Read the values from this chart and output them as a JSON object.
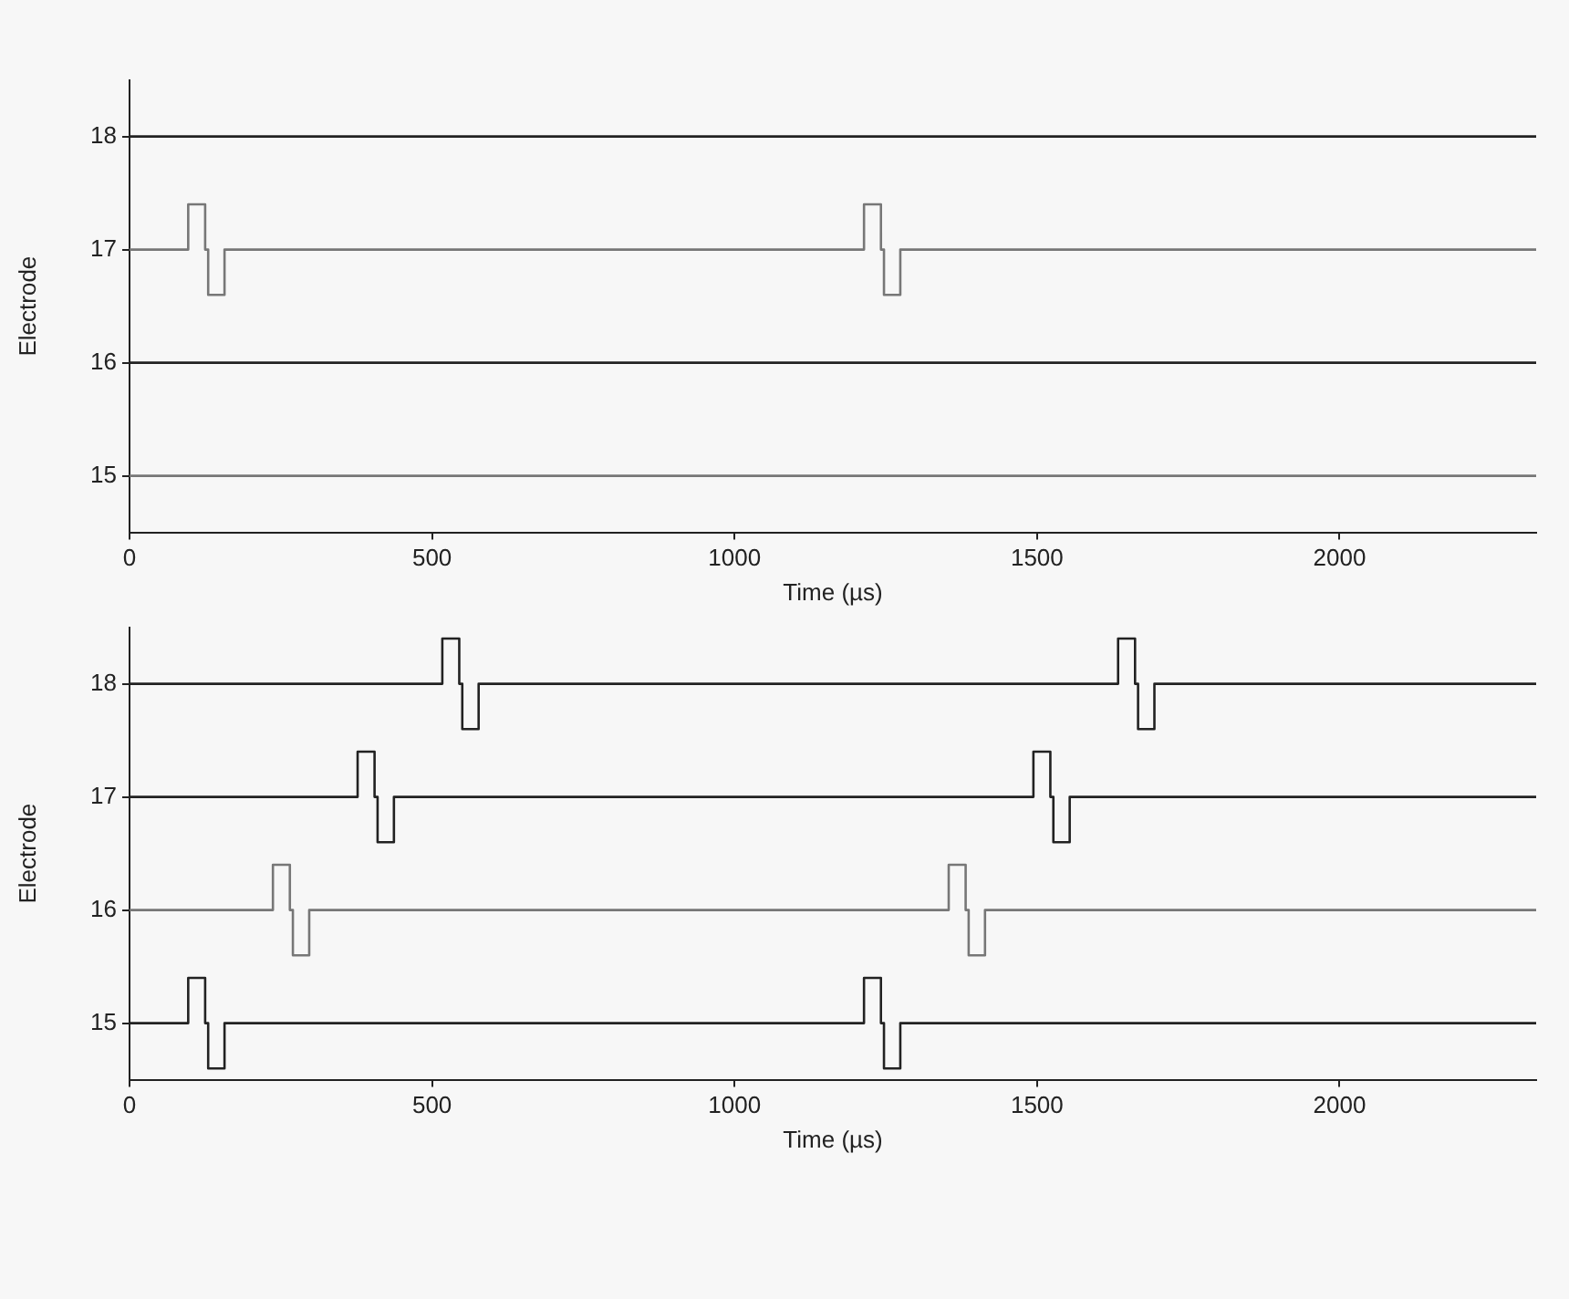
{
  "chart_data": [
    {
      "type": "line",
      "xlabel": "Time (µs)",
      "ylabel": "Electrode",
      "xlim": [
        0,
        2325
      ],
      "xticks": [
        0,
        500,
        1000,
        1500,
        2000
      ],
      "ylim": [
        14.5,
        18.5
      ],
      "yticks": [
        15,
        16,
        17,
        18
      ],
      "grid": false,
      "legend": false,
      "marker": "none",
      "series": [
        {
          "color": "#222222",
          "x": [
            0,
            2325
          ],
          "values": [
            18,
            18
          ]
        },
        {
          "color": "#777777",
          "x": [
            0,
            97,
            97,
            125,
            125,
            130,
            130,
            157,
            157,
            1214,
            1214,
            1242,
            1242,
            1247,
            1247,
            1274,
            1274,
            2325
          ],
          "values": [
            17,
            17,
            17.4,
            17.4,
            17,
            17,
            16.6,
            16.6,
            17,
            17,
            17.4,
            17.4,
            17,
            17,
            16.6,
            16.6,
            17,
            17
          ]
        },
        {
          "color": "#222222",
          "x": [
            0,
            2325
          ],
          "values": [
            16,
            16
          ]
        },
        {
          "color": "#777777",
          "x": [
            0,
            2325
          ],
          "values": [
            15,
            15
          ]
        }
      ]
    },
    {
      "type": "line",
      "xlabel": "Time (µs)",
      "ylabel": "Electrode",
      "xlim": [
        0,
        2325
      ],
      "xticks": [
        0,
        500,
        1000,
        1500,
        2000
      ],
      "ylim": [
        14.5,
        18.5
      ],
      "yticks": [
        15,
        16,
        17,
        18
      ],
      "grid": false,
      "legend": false,
      "marker": "none",
      "series": [
        {
          "color": "#222222",
          "x": [
            0,
            517,
            517,
            545,
            545,
            550,
            550,
            577,
            577,
            1634,
            1634,
            1662,
            1662,
            1667,
            1667,
            1694,
            1694,
            2325
          ],
          "values": [
            18,
            18,
            18.4,
            18.4,
            18,
            18,
            17.6,
            17.6,
            18,
            18,
            18.4,
            18.4,
            18,
            18,
            17.6,
            17.6,
            18,
            18
          ]
        },
        {
          "color": "#222222",
          "x": [
            0,
            377,
            377,
            405,
            405,
            410,
            410,
            437,
            437,
            1494,
            1494,
            1522,
            1522,
            1527,
            1527,
            1554,
            1554,
            2325
          ],
          "values": [
            17,
            17,
            17.4,
            17.4,
            17,
            17,
            16.6,
            16.6,
            17,
            17,
            17.4,
            17.4,
            17,
            17,
            16.6,
            16.6,
            17,
            17
          ]
        },
        {
          "color": "#777777",
          "x": [
            0,
            237,
            237,
            265,
            265,
            270,
            270,
            297,
            297,
            1354,
            1354,
            1382,
            1382,
            1387,
            1387,
            1414,
            1414,
            2325
          ],
          "values": [
            16,
            16,
            16.4,
            16.4,
            16,
            16,
            15.6,
            15.6,
            16,
            16,
            16.4,
            16.4,
            16,
            16,
            15.6,
            15.6,
            16,
            16
          ]
        },
        {
          "color": "#222222",
          "x": [
            0,
            97,
            97,
            125,
            125,
            130,
            130,
            157,
            157,
            1214,
            1214,
            1242,
            1242,
            1247,
            1247,
            1274,
            1274,
            2325
          ],
          "values": [
            15,
            15,
            15.4,
            15.4,
            15,
            15,
            14.6,
            14.6,
            15,
            15,
            15.4,
            15.4,
            15,
            15,
            14.6,
            14.6,
            15,
            15
          ]
        }
      ]
    }
  ]
}
